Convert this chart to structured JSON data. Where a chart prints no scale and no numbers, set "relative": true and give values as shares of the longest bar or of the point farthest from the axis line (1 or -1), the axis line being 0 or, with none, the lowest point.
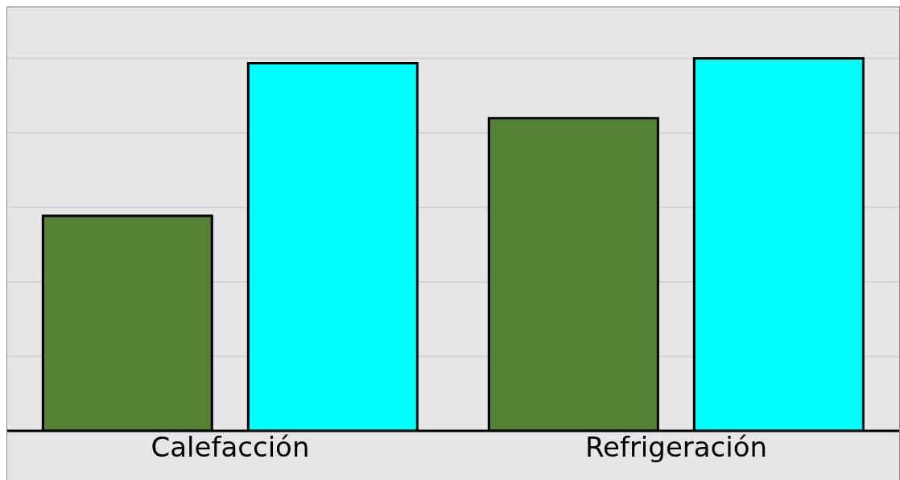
{
  "chart_data": {
    "type": "bar",
    "relative": true,
    "categories": [
      "Calefacción",
      "Refrigeración"
    ],
    "series": [
      {
        "color": "#548235",
        "values": [
          0.577,
          0.839
        ]
      },
      {
        "color": "#00ffff",
        "values": [
          0.987,
          1
        ]
      }
    ],
    "grid": "y"
  }
}
